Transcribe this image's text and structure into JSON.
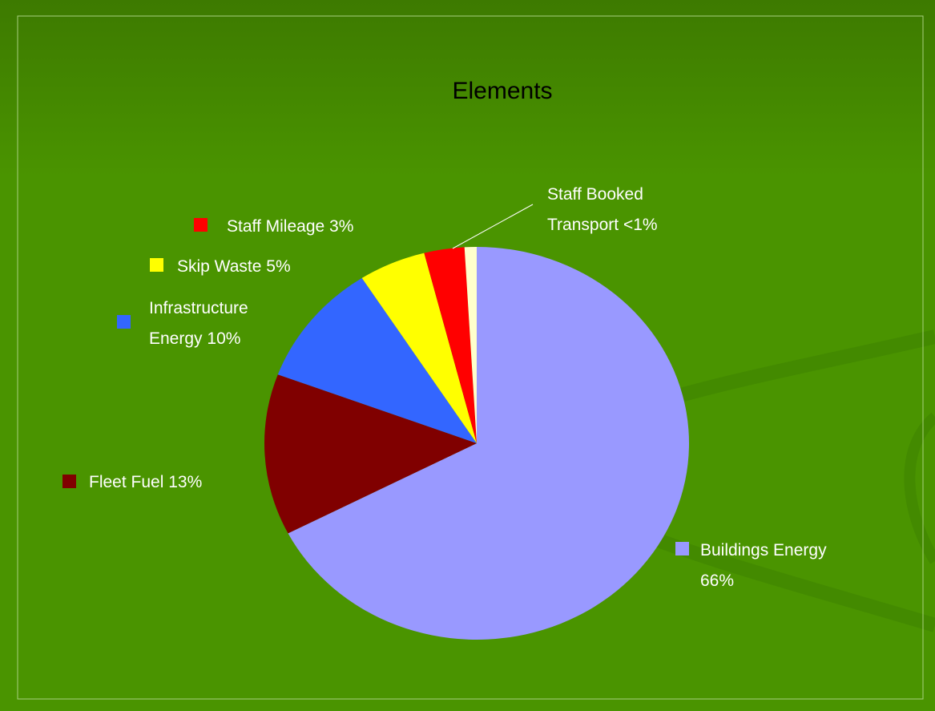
{
  "chart_data": {
    "type": "pie",
    "title": "Elements",
    "categories": [
      "Buildings Energy",
      "Fleet Fuel",
      "Infrastructure Energy",
      "Skip Waste",
      "Staff Mileage",
      "Staff Booked Transport"
    ],
    "values": [
      66,
      13,
      10,
      5,
      3,
      0.9
    ],
    "value_labels": [
      "66%",
      "13%",
      "10%",
      "5%",
      "3%",
      "<1%"
    ],
    "colors": [
      "#9999ff",
      "#800000",
      "#3366ff",
      "#ffff00",
      "#ff0000",
      "#ffffcc"
    ]
  }
}
